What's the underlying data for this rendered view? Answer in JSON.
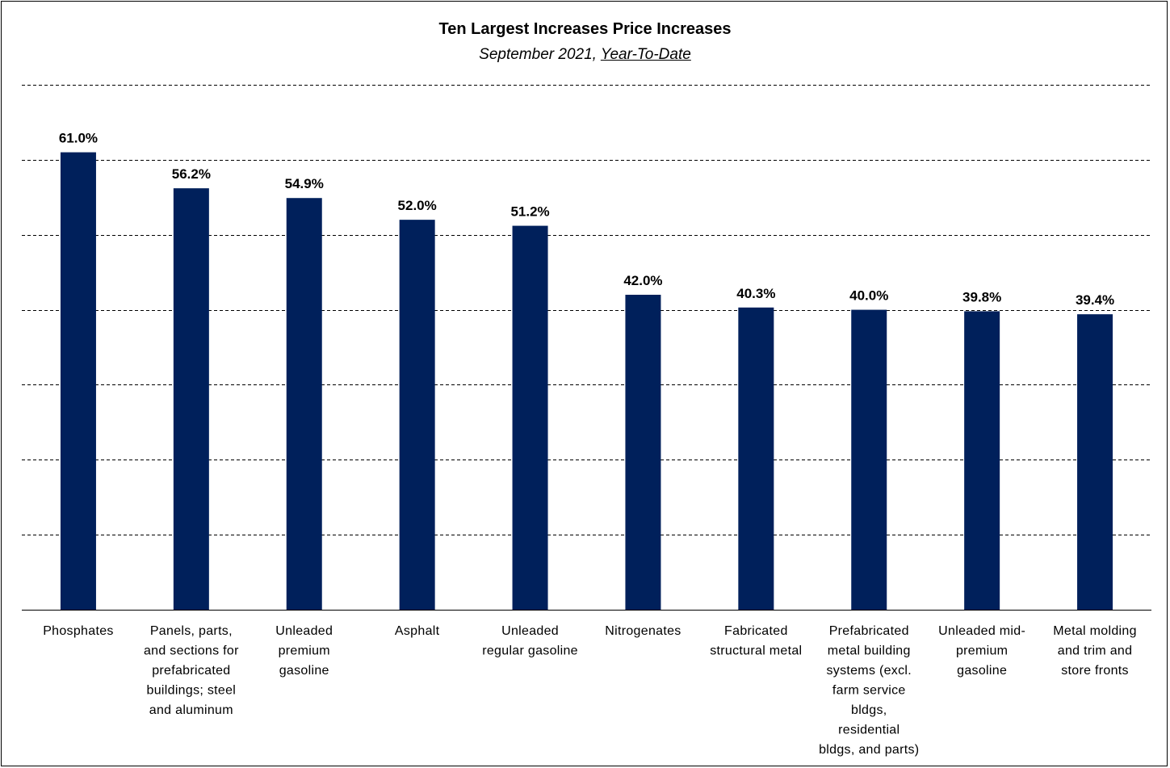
{
  "colors": {
    "bar": "#00205b",
    "grid": "#000000",
    "axis": "#000000"
  },
  "chart_data": {
    "type": "bar",
    "title": "Ten Largest Increases Price Increases",
    "subtitle": {
      "prefix": "September 2021, ",
      "emphasis": "Year-To-Date"
    },
    "categories": [
      "Phosphates",
      "Panels, parts, and sections for prefabricated buildings; steel and aluminum",
      "Unleaded premium gasoline",
      "Asphalt",
      "Unleaded regular gasoline",
      "Nitrogenates",
      "Fabricated structural metal",
      "Prefabricated metal building systems (excl. farm service bldgs, residential bldgs, and parts)",
      "Unleaded mid-premium gasoline",
      "Metal molding and trim and store fronts"
    ],
    "category_lines": [
      [
        "Phosphates"
      ],
      [
        "Panels, parts,",
        "and sections for",
        "prefabricated",
        "buildings; steel",
        "and aluminum"
      ],
      [
        "Unleaded",
        "premium",
        "gasoline"
      ],
      [
        "Asphalt"
      ],
      [
        "Unleaded",
        "regular gasoline"
      ],
      [
        "Nitrogenates"
      ],
      [
        "Fabricated",
        "structural metal"
      ],
      [
        "Prefabricated",
        "metal building",
        "systems (excl.",
        "farm service",
        "bldgs,",
        "residential",
        "bldgs, and parts)"
      ],
      [
        "Unleaded mid-",
        "premium",
        "gasoline"
      ],
      [
        "Metal molding",
        "and trim and",
        "store fronts"
      ]
    ],
    "values": [
      61.0,
      56.2,
      54.9,
      52.0,
      51.2,
      42.0,
      40.3,
      40.0,
      39.8,
      39.4
    ],
    "value_labels": [
      "61.0%",
      "56.2%",
      "54.9%",
      "52.0%",
      "51.2%",
      "42.0%",
      "40.3%",
      "40.0%",
      "39.8%",
      "39.4%"
    ],
    "ylim": [
      0,
      70
    ],
    "gridlines": [
      10,
      20,
      30,
      40,
      50,
      60,
      70
    ],
    "grid": true,
    "xlabel": "",
    "ylabel": ""
  }
}
